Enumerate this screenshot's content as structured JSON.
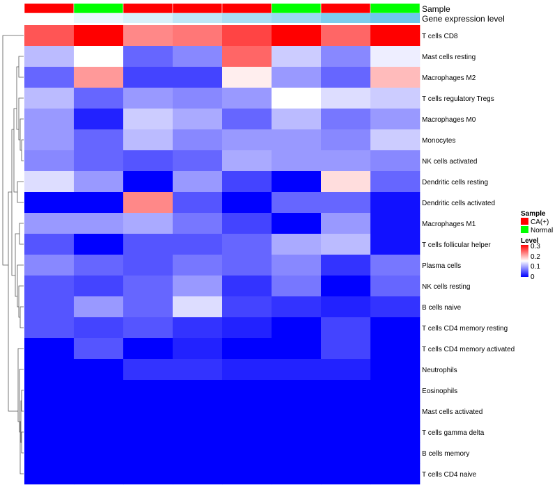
{
  "chart_data": {
    "type": "heatmap",
    "title": "",
    "annotation_tracks": [
      {
        "name": "Sample",
        "values": [
          "CA(+)",
          "Normal",
          "CA(+)",
          "CA(+)",
          "CA(+)",
          "Normal",
          "CA(+)",
          "Normal"
        ]
      },
      {
        "name": "Gene expression level",
        "colors": [
          "#ffffff",
          "#eaf7fc",
          "#d9f1fa",
          "#bfe7f7",
          "#a9dff5",
          "#9ad9f2",
          "#7dcdee",
          "#6ec7ec"
        ]
      }
    ],
    "rows": [
      "T cells CD8",
      "Mast cells resting",
      "Macrophages M2",
      "T cells regulatory  Tregs",
      "Macrophages M0",
      "Monocytes",
      "NK cells activated",
      "Dendritic cells resting",
      "Dendritic cells activated",
      "Macrophages M1",
      "T cells follicular helper",
      "Plasma cells",
      "NK cells resting",
      "B cells naive",
      "T cells CD4 memory resting",
      "T cells CD4 memory activated",
      "Neutrophils",
      "Eosinophils",
      "Mast cells activated",
      "T cells gamma delta",
      "B cells memory",
      "T cells CD4 naive"
    ],
    "values": [
      [
        0.25,
        0.3,
        0.22,
        0.23,
        0.26,
        0.3,
        0.24,
        0.3
      ],
      [
        0.11,
        0.15,
        0.06,
        0.08,
        0.24,
        0.12,
        0.08,
        0.14
      ],
      [
        0.06,
        0.21,
        0.04,
        0.04,
        0.16,
        0.09,
        0.06,
        0.19
      ],
      [
        0.11,
        0.06,
        0.09,
        0.08,
        0.09,
        0.15,
        0.13,
        0.12
      ],
      [
        0.09,
        0.02,
        0.12,
        0.1,
        0.06,
        0.11,
        0.07,
        0.09
      ],
      [
        0.09,
        0.06,
        0.11,
        0.08,
        0.09,
        0.09,
        0.08,
        0.12
      ],
      [
        0.08,
        0.06,
        0.05,
        0.06,
        0.1,
        0.09,
        0.09,
        0.08
      ],
      [
        0.13,
        0.09,
        0.0,
        0.09,
        0.04,
        0.0,
        0.17,
        0.06
      ],
      [
        0.0,
        0.0,
        0.22,
        0.05,
        0.0,
        0.06,
        0.06,
        0.01
      ],
      [
        0.09,
        0.09,
        0.1,
        0.07,
        0.04,
        0.0,
        0.09,
        0.01
      ],
      [
        0.05,
        0.0,
        0.05,
        0.05,
        0.06,
        0.1,
        0.11,
        0.01
      ],
      [
        0.08,
        0.06,
        0.05,
        0.07,
        0.06,
        0.08,
        0.03,
        0.07
      ],
      [
        0.05,
        0.04,
        0.06,
        0.09,
        0.03,
        0.07,
        0.0,
        0.06
      ],
      [
        0.05,
        0.09,
        0.06,
        0.13,
        0.04,
        0.03,
        0.02,
        0.03
      ],
      [
        0.05,
        0.04,
        0.05,
        0.03,
        0.02,
        0.0,
        0.04,
        0.0
      ],
      [
        0.0,
        0.05,
        0.0,
        0.02,
        0.0,
        0.0,
        0.04,
        0.0
      ],
      [
        0.0,
        0.0,
        0.03,
        0.03,
        0.02,
        0.02,
        0.02,
        0.0
      ],
      [
        0.0,
        0.0,
        0.0,
        0.0,
        0.0,
        0.0,
        0.0,
        0.0
      ],
      [
        0.0,
        0.0,
        0.0,
        0.0,
        0.0,
        0.0,
        0.0,
        0.0
      ],
      [
        0.0,
        0.0,
        0.0,
        0.0,
        0.0,
        0.0,
        0.0,
        0.0
      ],
      [
        0.0,
        0.0,
        0.0,
        0.0,
        0.0,
        0.0,
        0.0,
        0.0
      ],
      [
        0.0,
        0.0,
        0.0,
        0.0,
        0.0,
        0.0,
        0.0,
        0.0
      ]
    ],
    "color_scale": {
      "min": 0,
      "mid": 0.15,
      "max": 0.3,
      "low": "#0000ff",
      "mid_color": "#ffffff",
      "high": "#ff0000"
    },
    "legend": {
      "sample_title": "Sample",
      "sample_entries": [
        {
          "label": "CA(+)",
          "color": "#ff0000"
        },
        {
          "label": "Normal",
          "color": "#00ff00"
        }
      ],
      "level_title": "Level",
      "level_ticks": [
        "0.3",
        "0.2",
        "0.1",
        "0"
      ],
      "placement": "right"
    }
  }
}
